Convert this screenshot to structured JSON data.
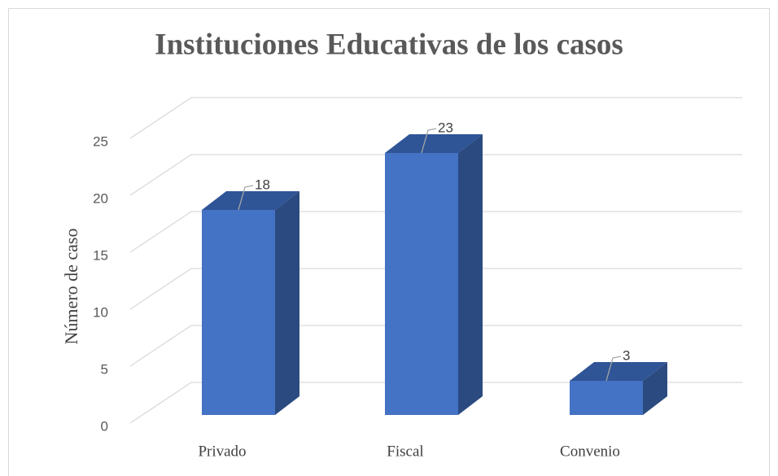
{
  "chart_data": {
    "type": "bar3d",
    "title": "Instituciones Educativas de los casos",
    "y_label": "Número de caso",
    "categories": [
      "Privado",
      "Fiscal",
      "Convenio"
    ],
    "values": [
      18,
      23,
      3
    ],
    "color": "#4472c4",
    "ylim": [
      0,
      25
    ],
    "yticks": [
      0,
      5,
      10,
      15,
      20,
      25
    ],
    "grid": true
  }
}
